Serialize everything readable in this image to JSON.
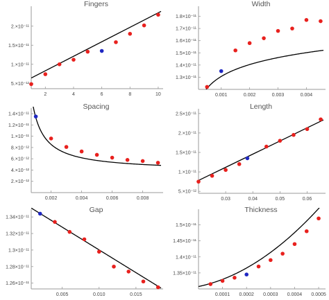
{
  "chart_data": [
    {
      "type": "scatter",
      "title": "Fingers",
      "xlim": [
        1,
        10.2
      ],
      "ylim": [
        3.6e-12,
        2.45e-11
      ],
      "xticks": [
        2,
        4,
        6,
        8,
        10
      ],
      "xticklabels": [
        "2",
        "4",
        "6",
        "8",
        "10"
      ],
      "yticks": [
        5e-12,
        1e-11,
        1.5e-11,
        2e-11
      ],
      "yticklabels": [
        "5.×10⁻¹²",
        "1.×10⁻¹¹",
        "1.5×10⁻¹¹",
        "2.×10⁻¹¹"
      ],
      "points": [
        [
          1,
          4.8e-12
        ],
        [
          2,
          7.4e-12
        ],
        [
          3,
          1e-11
        ],
        [
          4,
          1.12e-11
        ],
        [
          5,
          1.33e-11
        ],
        [
          7,
          1.58e-11
        ],
        [
          8,
          1.8e-11
        ],
        [
          9,
          2.02e-11
        ],
        [
          10,
          2.3e-11
        ]
      ],
      "highlight": [
        [
          6,
          1.35e-11
        ]
      ],
      "fit": {
        "kind": "linear",
        "a": 4.5e-12,
        "b": 1.9e-12
      },
      "point_color": "#e8211e",
      "highlight_color": "#1f28c2"
    },
    {
      "type": "scatter",
      "title": "Width",
      "xlim": [
        0.0002,
        0.0046
      ],
      "ylim": [
        1.2e-11,
        1.86e-11
      ],
      "xticks": [
        0.001,
        0.002,
        0.003,
        0.004
      ],
      "xticklabels": [
        "0.001",
        "0.002",
        "0.003",
        "0.004"
      ],
      "yticks": [
        1.3e-11,
        1.4e-11,
        1.5e-11,
        1.6e-11,
        1.7e-11,
        1.8e-11
      ],
      "yticklabels": [
        "1.3×10⁻¹¹",
        "1.4×10⁻¹¹",
        "1.5×10⁻¹¹",
        "1.6×10⁻¹¹",
        "1.7×10⁻¹¹",
        "1.8×10⁻¹¹"
      ],
      "points": [
        [
          0.0005,
          1.22e-11
        ],
        [
          0.0015,
          1.52e-11
        ],
        [
          0.002,
          1.58e-11
        ],
        [
          0.0025,
          1.62e-11
        ],
        [
          0.003,
          1.68e-11
        ],
        [
          0.0035,
          1.7e-11
        ],
        [
          0.004,
          1.77e-11
        ],
        [
          0.0045,
          1.76e-11
        ]
      ],
      "highlight": [
        [
          0.001,
          1.35e-11
        ]
      ],
      "fit": {
        "kind": "log",
        "a": 2.28e-11,
        "b": 1.41e-12
      },
      "point_color": "#e8211e",
      "highlight_color": "#1f28c2"
    },
    {
      "type": "scatter",
      "title": "Spacing",
      "xlim": [
        0.0007,
        0.0092
      ],
      "ylim": [
        0,
        1.45e-11
      ],
      "xticks": [
        0.002,
        0.004,
        0.006,
        0.008
      ],
      "xticklabels": [
        "0.002",
        "0.004",
        "0.006",
        "0.008"
      ],
      "yticks": [
        2e-12,
        4e-12,
        6e-12,
        8e-12,
        1e-11,
        1.2e-11,
        1.4e-11
      ],
      "yticklabels": [
        "2.×10⁻¹²",
        "4.×10⁻¹²",
        "6.×10⁻¹²",
        "8.×10⁻¹²",
        "1.×10⁻¹¹",
        "1.2×10⁻¹¹",
        "1.4×10⁻¹¹"
      ],
      "points": [
        [
          0.002,
          9.6e-12
        ],
        [
          0.003,
          8.1e-12
        ],
        [
          0.004,
          7.3e-12
        ],
        [
          0.005,
          6.7e-12
        ],
        [
          0.006,
          6.2e-12
        ],
        [
          0.007,
          5.8e-12
        ],
        [
          0.008,
          5.6e-12
        ],
        [
          0.009,
          5.3e-12
        ]
      ],
      "highlight": [
        [
          0.001,
          1.35e-11
        ]
      ],
      "fit": {
        "kind": "inverse",
        "a": 3.8e-12,
        "b": 9.5e-15
      },
      "point_color": "#e8211e",
      "highlight_color": "#1f28c2"
    },
    {
      "type": "scatter",
      "title": "Length",
      "xlim": [
        0.02,
        0.066
      ],
      "ylim": [
        4.5e-12,
        2.55e-11
      ],
      "xticks": [
        0.03,
        0.04,
        0.05,
        0.06
      ],
      "xticklabels": [
        "0.03",
        "0.04",
        "0.05",
        "0.06"
      ],
      "yticks": [
        5e-12,
        1e-11,
        1.5e-11,
        2e-11,
        2.5e-11
      ],
      "yticklabels": [
        "5.×10⁻¹²",
        "1.×10⁻¹¹",
        "1.5×10⁻¹¹",
        "2.×10⁻¹¹",
        "2.5×10⁻¹¹"
      ],
      "points": [
        [
          0.02,
          7.5e-12
        ],
        [
          0.025,
          9e-12
        ],
        [
          0.03,
          1.05e-11
        ],
        [
          0.035,
          1.2e-11
        ],
        [
          0.045,
          1.65e-11
        ],
        [
          0.05,
          1.8e-11
        ],
        [
          0.055,
          1.95e-11
        ],
        [
          0.06,
          2.1e-11
        ],
        [
          0.065,
          2.35e-11
        ]
      ],
      "highlight": [
        [
          0.038,
          1.35e-11
        ]
      ],
      "fit": {
        "kind": "linear",
        "a": 1.04e-12,
        "b": 3.38e-10
      },
      "point_color": "#e8211e",
      "highlight_color": "#1f28c2"
    },
    {
      "type": "scatter",
      "title": "Gap",
      "xlim": [
        0.0008,
        0.0184
      ],
      "ylim": [
        1.253e-11,
        1.346e-11
      ],
      "xticks": [
        0.005,
        0.01,
        0.015
      ],
      "xticklabels": [
        "0.005",
        "0.010",
        "0.015"
      ],
      "yticks": [
        1.26e-11,
        1.28e-11,
        1.3e-11,
        1.32e-11,
        1.34e-11
      ],
      "yticklabels": [
        "1.26×10⁻¹¹",
        "1.28×10⁻¹¹",
        "1.3×10⁻¹¹",
        "1.32×10⁻¹¹",
        "1.34×10⁻¹¹"
      ],
      "points": [
        [
          0.004,
          1.334e-11
        ],
        [
          0.006,
          1.322e-11
        ],
        [
          0.008,
          1.313e-11
        ],
        [
          0.01,
          1.298e-11
        ],
        [
          0.012,
          1.28e-11
        ],
        [
          0.014,
          1.274e-11
        ],
        [
          0.016,
          1.262e-11
        ],
        [
          0.018,
          1.255e-11
        ]
      ],
      "highlight": [
        [
          0.002,
          1.344e-11
        ]
      ],
      "fit": {
        "kind": "linear",
        "a": 1.3552e-11,
        "b": -5.5e-11
      },
      "point_color": "#e8211e",
      "highlight_color": "#1f28c2"
    },
    {
      "type": "scatter",
      "title": "Thickness",
      "xlim": [
        0.0,
        0.00052
      ],
      "ylim": [
        1.3e-11,
        1.54e-11
      ],
      "xticks": [
        0.0001,
        0.0002,
        0.0003,
        0.0004,
        0.0005
      ],
      "xticklabels": [
        "0.0001",
        "0.0002",
        "0.0003",
        "0.0004",
        "0.0005"
      ],
      "yticks": [
        1.35e-11,
        1.4e-11,
        1.45e-11,
        1.5e-11
      ],
      "yticklabels": [
        "1.35×10⁻¹¹",
        "1.4×10⁻¹¹",
        "1.45×10⁻¹¹",
        "1.5×10⁻¹¹"
      ],
      "points": [
        [
          5e-05,
          1.315e-11
        ],
        [
          0.0001,
          1.325e-11
        ],
        [
          0.00015,
          1.335e-11
        ],
        [
          0.00025,
          1.37e-11
        ],
        [
          0.0003,
          1.39e-11
        ],
        [
          0.00035,
          1.41e-11
        ],
        [
          0.0004,
          1.44e-11
        ],
        [
          0.00045,
          1.48e-11
        ],
        [
          0.0005,
          1.52e-11
        ]
      ],
      "highlight": [
        [
          0.0002,
          1.345e-11
        ]
      ],
      "fit": {
        "kind": "quadratic",
        "a": 1.3075e-11,
        "b": 1.57e-09,
        "c": 6.6e-06
      },
      "point_color": "#e8211e",
      "highlight_color": "#1f28c2"
    }
  ]
}
